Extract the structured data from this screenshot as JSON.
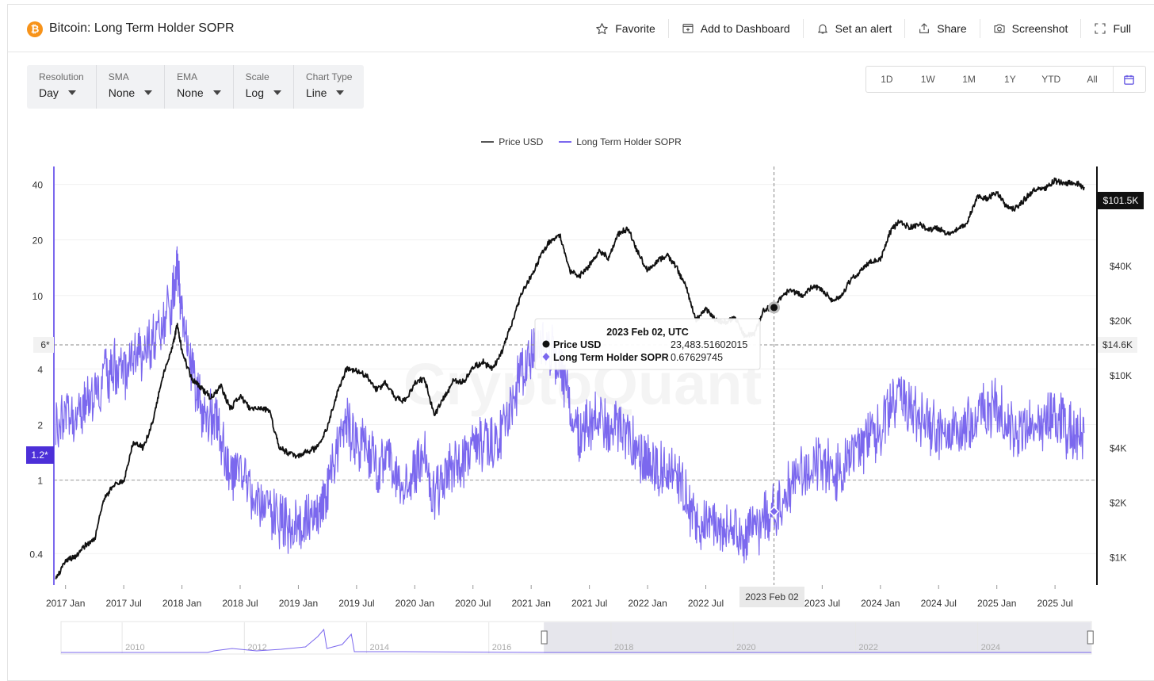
{
  "header": {
    "logo_glyph": "₿",
    "title": "Bitcoin: Long Term Holder SOPR",
    "actions": [
      {
        "label": "Favorite",
        "icon": "star-icon"
      },
      {
        "label": "Add to Dashboard",
        "icon": "add-dashboard-icon"
      },
      {
        "label": "Set an alert",
        "icon": "bell-icon"
      },
      {
        "label": "Share",
        "icon": "share-icon"
      },
      {
        "label": "Screenshot",
        "icon": "camera-icon"
      },
      {
        "label": "Full",
        "icon": "fullscreen-icon"
      }
    ]
  },
  "controls": [
    {
      "label": "Resolution",
      "value": "Day"
    },
    {
      "label": "SMA",
      "value": "None"
    },
    {
      "label": "EMA",
      "value": "None"
    },
    {
      "label": "Scale",
      "value": "Log"
    },
    {
      "label": "Chart Type",
      "value": "Line"
    }
  ],
  "range_buttons": [
    "1D",
    "1W",
    "1M",
    "1Y",
    "YTD",
    "All"
  ],
  "range_calendar_icon": "calendar-icon",
  "legend": [
    {
      "label": "Price USD",
      "color": "#555555"
    },
    {
      "label": "Long Term Holder SOPR",
      "color": "#7b68ee"
    }
  ],
  "watermark": "CryptoQuant",
  "tooltip": {
    "date": "2023 Feb 02, UTC",
    "rows": [
      {
        "label": "Price USD",
        "value": "23,483.51602015"
      },
      {
        "label": "Long Term Holder SOPR",
        "value": "0.67629745"
      }
    ]
  },
  "crosshair": {
    "date_label": "2023 Feb 02",
    "sopr_marker_label": "6*",
    "price_marker_label": "$14.6K"
  },
  "badges": {
    "sopr_current": "1.2*",
    "price_current": "$101.5K"
  },
  "navigator": {
    "labels": [
      "2010",
      "2012",
      "2014",
      "2016",
      "2018",
      "2020",
      "2022",
      "2024"
    ],
    "selected_start_year": 2016.9,
    "selected_end_year": 2025.85
  },
  "chart_data": {
    "type": "line",
    "x_tick_labels": [
      "2017 Jan",
      "2017 Jul",
      "2018 Jan",
      "2018 Jul",
      "2019 Jan",
      "2019 Jul",
      "2020 Jan",
      "2020 Jul",
      "2021 Jan",
      "2021 Jul",
      "2022 Jan",
      "2022 Jul",
      "2023 Jul",
      "2024 Jan",
      "2024 Jul",
      "2025 Jan",
      "2025 Jul"
    ],
    "left_axis": {
      "scale": "log",
      "ticks": [
        0.4,
        1,
        2,
        4,
        10,
        20,
        40
      ],
      "labels": [
        "0.4",
        "1",
        "2",
        "4",
        "10",
        "20",
        "40"
      ],
      "ylim": [
        0.27,
        50
      ]
    },
    "right_axis": {
      "scale": "log",
      "ticks": [
        1000,
        2000,
        4000,
        10000,
        20000,
        40000
      ],
      "labels": [
        "$1K",
        "$2K",
        "$4K",
        "$10K",
        "$20K",
        "$40K"
      ],
      "ylim": [
        700,
        140000
      ]
    },
    "reference_line": 1,
    "series": [
      {
        "name": "Price USD",
        "axis": "right",
        "color": "#111111",
        "x": [
          "2016-12-01",
          "2017-01-01",
          "2017-02-01",
          "2017-03-01",
          "2017-04-01",
          "2017-05-01",
          "2017-06-01",
          "2017-07-01",
          "2017-08-01",
          "2017-09-01",
          "2017-10-01",
          "2017-11-01",
          "2017-12-01",
          "2017-12-17",
          "2018-01-01",
          "2018-02-01",
          "2018-03-01",
          "2018-04-01",
          "2018-05-01",
          "2018-06-01",
          "2018-07-01",
          "2018-08-01",
          "2018-09-01",
          "2018-10-01",
          "2018-11-01",
          "2018-12-01",
          "2019-01-01",
          "2019-02-01",
          "2019-03-01",
          "2019-04-01",
          "2019-05-01",
          "2019-06-01",
          "2019-07-01",
          "2019-08-01",
          "2019-09-01",
          "2019-10-01",
          "2019-11-01",
          "2019-12-01",
          "2020-01-01",
          "2020-02-01",
          "2020-03-01",
          "2020-04-01",
          "2020-05-01",
          "2020-06-01",
          "2020-07-01",
          "2020-08-01",
          "2020-09-01",
          "2020-10-01",
          "2020-11-01",
          "2020-12-01",
          "2021-01-01",
          "2021-02-01",
          "2021-03-01",
          "2021-04-01",
          "2021-05-01",
          "2021-06-01",
          "2021-07-01",
          "2021-08-01",
          "2021-09-01",
          "2021-10-01",
          "2021-11-01",
          "2021-12-01",
          "2022-01-01",
          "2022-02-01",
          "2022-03-01",
          "2022-04-01",
          "2022-05-01",
          "2022-06-01",
          "2022-07-01",
          "2022-08-01",
          "2022-09-01",
          "2022-10-01",
          "2022-11-01",
          "2022-12-01",
          "2023-01-01",
          "2023-02-01",
          "2023-03-01",
          "2023-04-01",
          "2023-05-01",
          "2023-06-01",
          "2023-07-01",
          "2023-08-01",
          "2023-09-01",
          "2023-10-01",
          "2023-11-01",
          "2023-12-01",
          "2024-01-01",
          "2024-02-01",
          "2024-03-01",
          "2024-04-01",
          "2024-05-01",
          "2024-06-01",
          "2024-07-01",
          "2024-08-01",
          "2024-09-01",
          "2024-10-01",
          "2024-11-01",
          "2024-12-01",
          "2025-01-01",
          "2025-02-01",
          "2025-03-01",
          "2025-04-01",
          "2025-05-01",
          "2025-06-01",
          "2025-07-01",
          "2025-08-01",
          "2025-09-01",
          "2025-10-01"
        ],
        "values": [
          750,
          950,
          1000,
          1150,
          1250,
          2100,
          2500,
          2600,
          4300,
          4000,
          5500,
          9800,
          14000,
          19000,
          13500,
          9500,
          8500,
          7500,
          8700,
          6500,
          7700,
          6500,
          6600,
          6400,
          4000,
          3700,
          3600,
          3800,
          4000,
          5200,
          8000,
          11000,
          10500,
          10000,
          8300,
          9000,
          7500,
          7200,
          9000,
          9600,
          6000,
          7500,
          9300,
          9200,
          11000,
          11800,
          10800,
          13500,
          19000,
          28000,
          35000,
          45000,
          55000,
          58000,
          37000,
          35000,
          40000,
          48000,
          44000,
          60000,
          64000,
          47000,
          38000,
          42000,
          46000,
          39000,
          30000,
          20000,
          23000,
          20000,
          19500,
          20500,
          16500,
          16800,
          23000,
          23480,
          28000,
          29000,
          27000,
          30500,
          29300,
          26000,
          27000,
          34000,
          37000,
          42000,
          43000,
          61000,
          71000,
          64000,
          68000,
          63000,
          64000,
          59000,
          63000,
          70000,
          96000,
          93000,
          102000,
          84000,
          82000,
          94000,
          106000,
          107000,
          117000,
          112000,
          114000,
          108000
        ]
      },
      {
        "name": "Long Term Holder SOPR",
        "axis": "left",
        "color": "#7b68ee",
        "x": [
          "2016-12-01",
          "2017-01-01",
          "2017-02-01",
          "2017-03-01",
          "2017-04-01",
          "2017-05-01",
          "2017-06-01",
          "2017-07-01",
          "2017-08-01",
          "2017-09-01",
          "2017-10-01",
          "2017-11-01",
          "2017-12-01",
          "2017-12-17",
          "2018-01-01",
          "2018-02-01",
          "2018-03-01",
          "2018-04-01",
          "2018-05-01",
          "2018-06-01",
          "2018-07-01",
          "2018-08-01",
          "2018-09-01",
          "2018-10-01",
          "2018-11-01",
          "2018-12-01",
          "2019-01-01",
          "2019-02-01",
          "2019-03-01",
          "2019-04-01",
          "2019-05-01",
          "2019-06-01",
          "2019-07-01",
          "2019-08-01",
          "2019-09-01",
          "2019-10-01",
          "2019-11-01",
          "2019-12-01",
          "2020-01-01",
          "2020-02-01",
          "2020-03-01",
          "2020-04-01",
          "2020-05-01",
          "2020-06-01",
          "2020-07-01",
          "2020-08-01",
          "2020-09-01",
          "2020-10-01",
          "2020-11-01",
          "2020-12-01",
          "2021-01-01",
          "2021-02-01",
          "2021-03-01",
          "2021-04-01",
          "2021-05-01",
          "2021-06-01",
          "2021-07-01",
          "2021-08-01",
          "2021-09-01",
          "2021-10-01",
          "2021-11-01",
          "2021-12-01",
          "2022-01-01",
          "2022-02-01",
          "2022-03-01",
          "2022-04-01",
          "2022-05-01",
          "2022-06-01",
          "2022-07-01",
          "2022-08-01",
          "2022-09-01",
          "2022-10-01",
          "2022-11-01",
          "2022-12-01",
          "2023-01-01",
          "2023-02-01",
          "2023-03-01",
          "2023-04-01",
          "2023-05-01",
          "2023-06-01",
          "2023-07-01",
          "2023-08-01",
          "2023-09-01",
          "2023-10-01",
          "2023-11-01",
          "2023-12-01",
          "2024-01-01",
          "2024-02-01",
          "2024-03-01",
          "2024-04-01",
          "2024-05-01",
          "2024-06-01",
          "2024-07-01",
          "2024-08-01",
          "2024-09-01",
          "2024-10-01",
          "2024-11-01",
          "2024-12-01",
          "2025-01-01",
          "2025-02-01",
          "2025-03-01",
          "2025-04-01",
          "2025-05-01",
          "2025-06-01",
          "2025-07-01",
          "2025-08-01",
          "2025-09-01",
          "2025-10-01"
        ],
        "values": [
          1.9,
          2.2,
          2.3,
          2.5,
          2.7,
          3.5,
          4.2,
          3.8,
          4.5,
          5.0,
          5.5,
          7.0,
          9.0,
          14.0,
          8.0,
          4.0,
          2.5,
          2.2,
          1.8,
          1.0,
          1.2,
          0.9,
          0.8,
          0.7,
          0.6,
          0.55,
          0.55,
          0.6,
          0.7,
          0.9,
          1.5,
          2.0,
          1.6,
          1.5,
          1.2,
          1.3,
          1.1,
          0.95,
          1.1,
          1.3,
          0.8,
          1.0,
          1.2,
          1.3,
          1.4,
          1.6,
          1.5,
          1.7,
          2.5,
          4.0,
          5.0,
          6.0,
          5.0,
          4.5,
          2.5,
          1.8,
          2.0,
          2.2,
          1.8,
          2.0,
          1.7,
          1.4,
          1.3,
          1.2,
          1.1,
          1.0,
          0.8,
          0.6,
          0.55,
          0.6,
          0.55,
          0.55,
          0.5,
          0.5,
          0.6,
          0.68,
          0.85,
          1.0,
          1.1,
          1.2,
          1.3,
          1.1,
          1.1,
          1.3,
          1.5,
          1.7,
          1.9,
          2.6,
          3.0,
          2.3,
          2.2,
          2.0,
          1.8,
          1.7,
          1.8,
          2.0,
          2.2,
          2.4,
          2.5,
          2.0,
          1.8,
          1.9,
          2.1,
          2.0,
          2.3,
          1.9,
          1.8,
          1.8
        ]
      }
    ]
  }
}
